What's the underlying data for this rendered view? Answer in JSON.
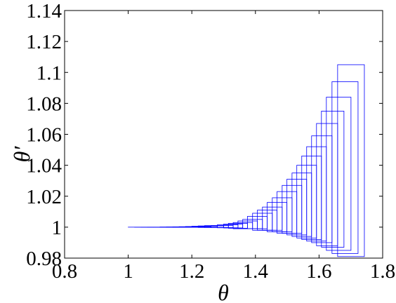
{
  "chart_data": {
    "type": "boxes",
    "xlabel": "θ",
    "ylabel": "θ′",
    "color": "#0000ff",
    "xlim": [
      0.8,
      1.8
    ],
    "xticks": [
      0.8,
      1,
      1.2,
      1.4,
      1.6,
      1.8
    ],
    "ylim": [
      0.98,
      1.14
    ],
    "yticks": [
      0.98,
      1,
      1.02,
      1.04,
      1.06,
      1.08,
      1.1,
      1.12,
      1.14
    ],
    "boxes": [
      {
        "x": [
          1.6584,
          1.7425
        ],
        "y": [
          0.981,
          1.105
        ]
      },
      {
        "x": [
          1.6407,
          1.7226
        ],
        "y": [
          0.983,
          1.094
        ]
      },
      {
        "x": [
          1.623,
          1.7004
        ],
        "y": [
          0.985,
          1.084
        ]
      },
      {
        "x": [
          1.6075,
          1.6783
        ],
        "y": [
          0.987,
          1.075
        ]
      },
      {
        "x": [
          1.592,
          1.6584
        ],
        "y": [
          0.988,
          1.067
        ]
      },
      {
        "x": [
          1.5765,
          1.6407
        ],
        "y": [
          0.99,
          1.059
        ]
      },
      {
        "x": [
          1.561,
          1.623
        ],
        "y": [
          0.991,
          1.052
        ]
      },
      {
        "x": [
          1.5456,
          1.6075
        ],
        "y": [
          0.992,
          1.046
        ]
      },
      {
        "x": [
          1.53,
          1.592
        ],
        "y": [
          0.993,
          1.04
        ]
      },
      {
        "x": [
          1.515,
          1.5765
        ],
        "y": [
          0.994,
          1.035
        ]
      },
      {
        "x": [
          1.499,
          1.561
        ],
        "y": [
          0.995,
          1.031
        ]
      },
      {
        "x": [
          1.484,
          1.5456
        ],
        "y": [
          0.996,
          1.027
        ]
      },
      {
        "x": [
          1.468,
          1.53
        ],
        "y": [
          0.996,
          1.023
        ]
      },
      {
        "x": [
          1.453,
          1.515
        ],
        "y": [
          0.997,
          1.019
        ]
      },
      {
        "x": [
          1.437,
          1.499
        ],
        "y": [
          0.997,
          1.016
        ]
      },
      {
        "x": [
          1.422,
          1.484
        ],
        "y": [
          0.998,
          1.013
        ]
      },
      {
        "x": [
          1.406,
          1.468
        ],
        "y": [
          0.998,
          1.011
        ]
      },
      {
        "x": [
          1.391,
          1.453
        ],
        "y": [
          0.998,
          1.009
        ]
      },
      {
        "x": [
          1.375,
          1.437
        ],
        "y": [
          0.999,
          1.007
        ]
      },
      {
        "x": [
          1.36,
          1.422
        ],
        "y": [
          0.999,
          1.005
        ]
      },
      {
        "x": [
          1.345,
          1.406
        ],
        "y": [
          0.999,
          1.004
        ]
      },
      {
        "x": [
          1.33,
          1.391
        ],
        "y": [
          0.999,
          1.003
        ]
      },
      {
        "x": [
          1.315,
          1.375
        ],
        "y": [
          0.9993,
          1.0025
        ]
      },
      {
        "x": [
          1.3,
          1.36
        ],
        "y": [
          0.9995,
          1.002
        ]
      },
      {
        "x": [
          1.28,
          1.345
        ],
        "y": [
          0.9996,
          1.0015
        ]
      },
      {
        "x": [
          1.26,
          1.33
        ],
        "y": [
          0.9997,
          1.001
        ]
      },
      {
        "x": [
          1.24,
          1.315
        ],
        "y": [
          0.9998,
          1.001
        ]
      },
      {
        "x": [
          1.22,
          1.3
        ],
        "y": [
          0.9998,
          1.0008
        ]
      },
      {
        "x": [
          1.2,
          1.28
        ],
        "y": [
          0.9999,
          1.0006
        ]
      },
      {
        "x": [
          1.18,
          1.26
        ],
        "y": [
          0.9999,
          1.0004
        ]
      },
      {
        "x": [
          1.16,
          1.24
        ],
        "y": [
          1,
          1.0003
        ]
      },
      {
        "x": [
          1.14,
          1.22
        ],
        "y": [
          1,
          1.0002
        ]
      },
      {
        "x": [
          1.12,
          1.2
        ],
        "y": [
          1,
          1.0001
        ]
      },
      {
        "x": [
          1.1,
          1.18
        ],
        "y": [
          1,
          1.0001
        ]
      },
      {
        "x": [
          1.08,
          1.16
        ],
        "y": [
          1,
          1
        ]
      },
      {
        "x": [
          1.06,
          1.14
        ],
        "y": [
          1,
          1
        ]
      },
      {
        "x": [
          1.04,
          1.12
        ],
        "y": [
          1,
          1
        ]
      },
      {
        "x": [
          1.02,
          1.1
        ],
        "y": [
          1,
          1
        ]
      },
      {
        "x": [
          1,
          1.08
        ],
        "y": [
          1,
          1
        ]
      }
    ]
  }
}
